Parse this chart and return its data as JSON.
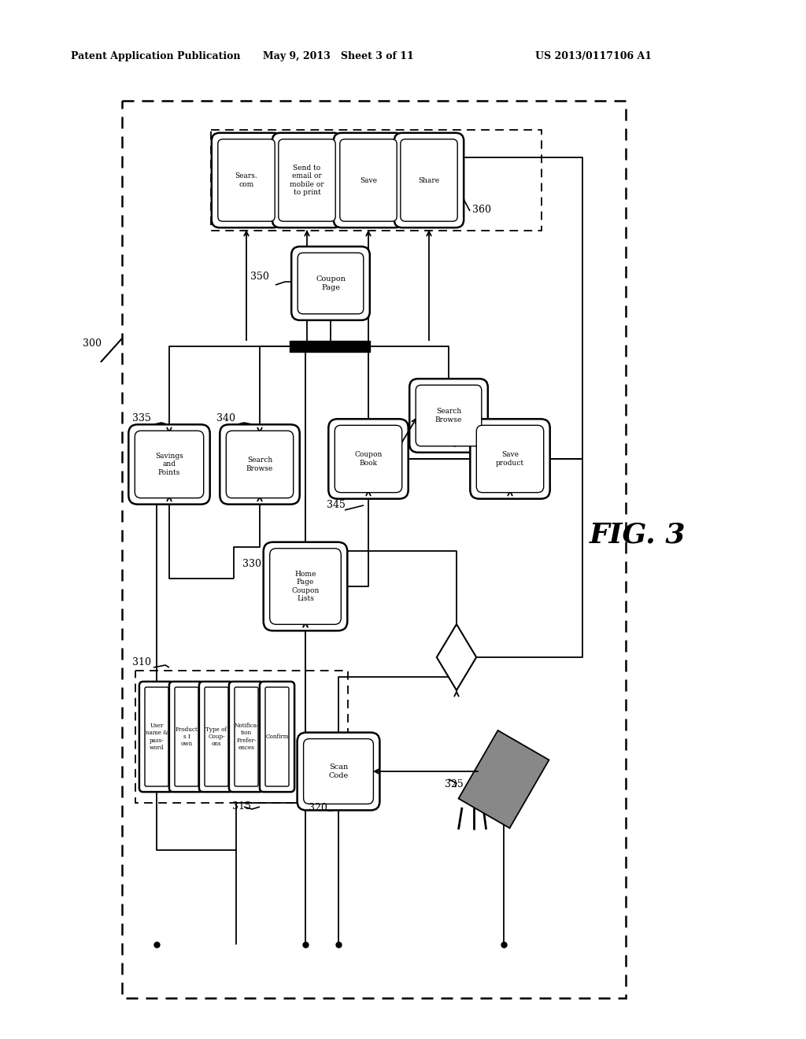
{
  "header_left": "Patent Application Publication",
  "header_mid": "May 9, 2013   Sheet 3 of 11",
  "header_right": "US 2013/0117106 A1",
  "fig_label": "FIG. 3",
  "bg": "#ffffff"
}
